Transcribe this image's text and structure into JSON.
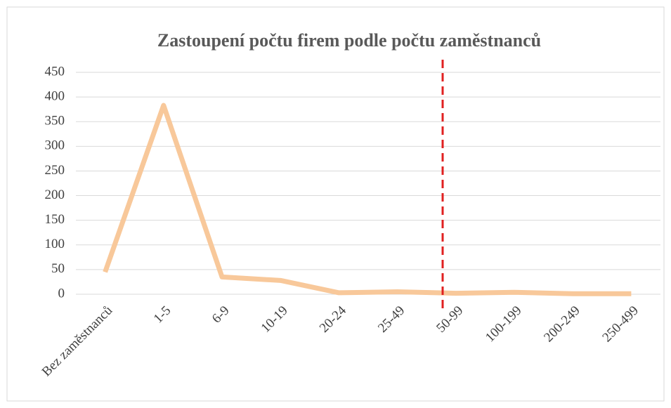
{
  "chart_data": {
    "type": "line",
    "title": "Zastoupení počtu firem  podle počtu zaměstnanců",
    "categories": [
      "Bez zaměstnanců",
      "1-5",
      "6-9",
      "10-19",
      "20-24",
      "25-49",
      "50-99",
      "100-199",
      "200-249",
      "250-499"
    ],
    "values": [
      45,
      383,
      35,
      28,
      3,
      5,
      2,
      4,
      1,
      1
    ],
    "color": "#f8c89a",
    "ylim": [
      0,
      450
    ],
    "yticks": [
      0,
      50,
      100,
      150,
      200,
      250,
      300,
      350,
      400,
      450
    ],
    "grid": true
  }
}
